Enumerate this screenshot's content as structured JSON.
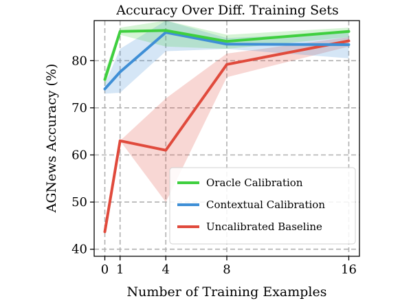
{
  "chart_data": {
    "type": "line",
    "title": "Accuracy Over Diff. Training Sets",
    "xlabel": "Number of Training Examples",
    "ylabel": "AGNews Accuracy (%)",
    "xlim": [
      -0.7,
      16.7
    ],
    "ylim": [
      38.5,
      88.5
    ],
    "xticks": [
      0,
      1,
      4,
      8,
      16
    ],
    "yticks": [
      40,
      50,
      60,
      70,
      80
    ],
    "grid": true,
    "legend_position": "lower-right",
    "series": [
      {
        "name": "Oracle Calibration",
        "color": "#3fcf3f",
        "x": [
          0,
          1,
          4,
          8,
          16
        ],
        "y": [
          76,
          86.2,
          86.4,
          84.1,
          86.2
        ],
        "lower": [
          74.5,
          85.5,
          83,
          82.5,
          85
        ],
        "upper": [
          77.5,
          87,
          88.5,
          85.5,
          87
        ]
      },
      {
        "name": "Contextual Calibration",
        "color": "#3f8fd6",
        "x": [
          0,
          1,
          4,
          8,
          16
        ],
        "y": [
          74,
          77.6,
          86,
          83.5,
          83.4
        ],
        "lower": [
          73,
          73.2,
          82,
          82.5,
          80.5
        ],
        "upper": [
          75,
          82.5,
          88.5,
          84.8,
          86
        ]
      },
      {
        "name": "Uncalibrated Baseline",
        "color": "#e04a3c",
        "x": [
          0,
          1,
          4,
          8,
          16
        ],
        "y": [
          43.7,
          63,
          61,
          79.2,
          84.2
        ],
        "lower": [
          43.5,
          63,
          50,
          76.5,
          83
        ],
        "upper": [
          44,
          63,
          72,
          81.5,
          85
        ]
      }
    ]
  }
}
